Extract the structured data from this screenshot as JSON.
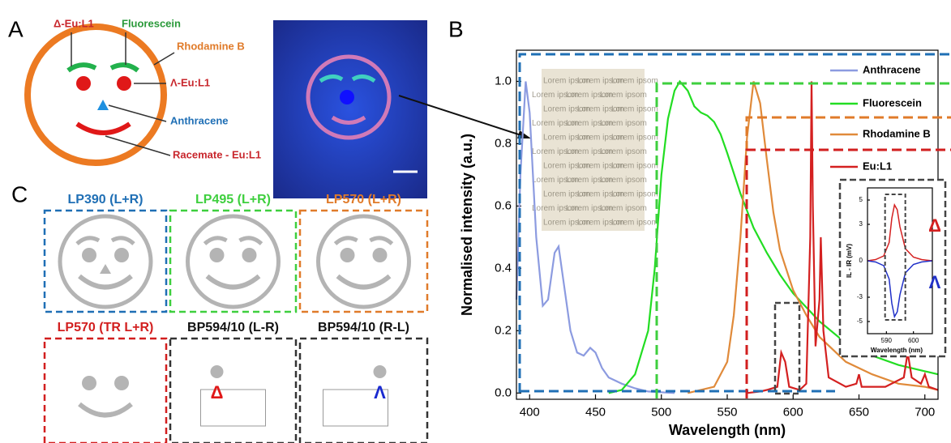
{
  "panel_labels": [
    "A",
    "B",
    "C"
  ],
  "panel_a": {
    "labels": [
      "Δ-Eu:L1",
      "Fluorescein",
      "Rhodamine B",
      "Λ-Eu:L1",
      "Anthracene",
      "Racemate - Eu:L1"
    ],
    "photo_text": "Lorem ipsom"
  },
  "panel_c": {
    "filters": [
      "LP390 (L+R)",
      "LP495 (L+R)",
      "LP570 (L+R)",
      "LP570 (TR L+R)",
      "BP594/10 (L-R)",
      "BP594/10 (R-L)"
    ],
    "markers": [
      "Δ",
      "Λ"
    ]
  },
  "chart_data": [
    {
      "type": "line",
      "xlabel": "Wavelength (nm)",
      "ylabel": "Normalised intensity (a.u.)",
      "xlim": [
        390,
        710
      ],
      "xticks": [
        400,
        450,
        500,
        550,
        600,
        650,
        700
      ],
      "ylim": [
        -0.02,
        1.1
      ],
      "yticks": [
        {
          "value": 0,
          "label": "0.0"
        },
        0.2,
        0.4,
        0.6,
        0.8,
        {
          "value": 1,
          "label": "1.0"
        }
      ],
      "series": [
        {
          "name": "Anthracene",
          "color": "#8c9be0",
          "x": [
            390,
            393,
            397,
            400,
            405,
            410,
            414,
            419,
            422,
            426,
            431,
            436,
            441,
            446,
            450,
            455,
            460,
            470,
            480,
            490,
            510
          ],
          "values": [
            0.3,
            0.7,
            1.0,
            0.9,
            0.5,
            0.28,
            0.3,
            0.45,
            0.47,
            0.35,
            0.2,
            0.13,
            0.12,
            0.145,
            0.13,
            0.08,
            0.05,
            0.03,
            0.015,
            0.005,
            0
          ]
        },
        {
          "name": "Fluorescein",
          "color": "#22dd22",
          "x": [
            460,
            470,
            480,
            490,
            495,
            500,
            505,
            510,
            514,
            520,
            525,
            530,
            535,
            540,
            545,
            550,
            560,
            570,
            580,
            590,
            600,
            620,
            640,
            660,
            680,
            700,
            710
          ],
          "values": [
            0,
            0.01,
            0.06,
            0.2,
            0.4,
            0.7,
            0.88,
            0.97,
            1.0,
            0.97,
            0.92,
            0.9,
            0.89,
            0.87,
            0.83,
            0.77,
            0.64,
            0.53,
            0.45,
            0.38,
            0.32,
            0.23,
            0.16,
            0.12,
            0.09,
            0.07,
            0.06
          ]
        },
        {
          "name": "Rhodamine B",
          "color": "#e08a3a",
          "x": [
            520,
            540,
            550,
            555,
            560,
            565,
            570,
            575,
            580,
            585,
            590,
            600,
            610,
            620,
            640,
            660,
            680,
            700,
            710
          ],
          "values": [
            0,
            0.02,
            0.1,
            0.25,
            0.5,
            0.82,
            1.0,
            0.93,
            0.75,
            0.58,
            0.46,
            0.33,
            0.25,
            0.18,
            0.1,
            0.06,
            0.03,
            0.02,
            0.01
          ]
        },
        {
          "name": "Eu:L1",
          "color": "#d42020",
          "x": [
            565,
            575,
            580,
            588,
            591,
            594,
            597,
            605,
            610,
            613,
            614,
            615,
            617,
            620,
            621,
            623,
            627,
            640,
            648,
            650,
            652,
            670,
            684,
            687,
            690,
            697,
            700,
            703,
            710
          ],
          "values": [
            0,
            0.005,
            0.01,
            0.02,
            0.13,
            0.1,
            0.02,
            0.01,
            0.03,
            0.5,
            1.0,
            0.6,
            0.15,
            0.3,
            0.5,
            0.2,
            0.05,
            0.02,
            0.03,
            0.06,
            0.02,
            0.02,
            0.05,
            0.13,
            0.05,
            0.03,
            0.06,
            0.02,
            0.01
          ]
        }
      ]
    },
    {
      "type": "line",
      "xlabel": "Wavelength (nm)",
      "ylabel": "IL - IR (mV)",
      "xlim": [
        583,
        607
      ],
      "xticks": [
        590,
        600
      ],
      "ylim": [
        -6,
        6
      ],
      "yticks": [
        5,
        3,
        0,
        -3,
        -5
      ],
      "series": [
        {
          "name": "Δ",
          "color": "#d42020",
          "x": [
            583,
            586,
            589,
            591,
            592,
            593,
            594,
            595,
            597,
            600,
            603,
            607
          ],
          "values": [
            0,
            0.1,
            0.4,
            1.5,
            3.5,
            4.6,
            4.2,
            2.8,
            1.0,
            0.3,
            0.1,
            0
          ]
        },
        {
          "name": "Λ",
          "color": "#2030c8",
          "x": [
            583,
            586,
            589,
            591,
            592,
            593,
            594,
            595,
            597,
            600,
            603,
            607
          ],
          "values": [
            0,
            -0.1,
            -0.4,
            -1.5,
            -3.5,
            -4.6,
            -4.2,
            -2.8,
            -1.0,
            -0.3,
            -0.1,
            0
          ]
        }
      ]
    }
  ]
}
